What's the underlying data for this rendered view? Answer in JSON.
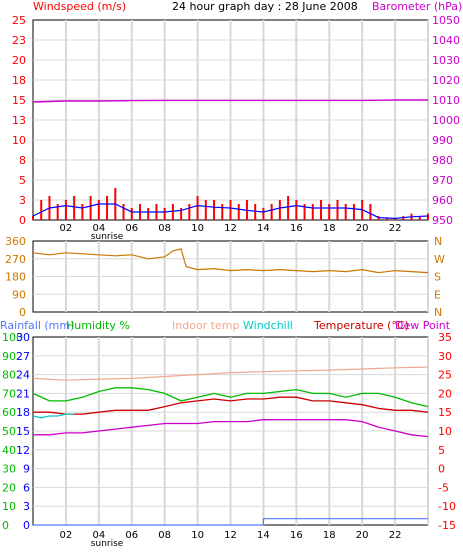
{
  "colors": {
    "wind": "#ff0000",
    "wind_avg": "#0000ff",
    "baro": "#cc00cc",
    "dir": "#cc7700",
    "rain": "#5577ff",
    "humidity": "#00bb00",
    "indoor": "#f0a890",
    "windchill": "#00cccc",
    "temperature": "#cc0000",
    "dewpoint": "#cc00cc",
    "grid": "#d8d8d8",
    "axis_text_left_rain": "#0000ff",
    "axis_text_left_hum": "#00bb00",
    "axis_text_right_temp": "#ff0000"
  },
  "chart_data": [
    {
      "type": "line",
      "title": "24 hour graph day : 28 June 2008",
      "left_label": "Windspeed (m/s)",
      "right_label": "Barometer (hPa)",
      "x_ticks": [
        "02",
        "04",
        "06",
        "08",
        "10",
        "12",
        "14",
        "16",
        "18",
        "20",
        "22",
        ""
      ],
      "sunrise_label": "sunrise",
      "y_left_ticks": [
        "0",
        "3",
        "5",
        "8",
        "10",
        "13",
        "15",
        "18",
        "20",
        "23",
        "25"
      ],
      "y_left_range": [
        0,
        25
      ],
      "y_right_ticks": [
        "950",
        "960",
        "970",
        "980",
        "990",
        "1000",
        "1010",
        "1020",
        "1030",
        "1040",
        "1050"
      ],
      "y_right_range": [
        950,
        1050
      ],
      "series": [
        {
          "key": "wind_gust",
          "x": [
            0,
            0.5,
            1,
            1.5,
            2,
            2.5,
            3,
            3.5,
            4,
            4.5,
            5,
            5.5,
            6,
            6.5,
            7,
            7.5,
            8,
            8.5,
            9,
            9.5,
            10,
            10.5,
            11,
            11.5,
            12,
            12.5,
            13,
            13.5,
            14,
            14.5,
            15,
            15.5,
            16,
            16.5,
            17,
            17.5,
            18,
            18.5,
            19,
            19.5,
            20,
            20.5,
            21,
            21.5,
            22,
            22.5,
            23,
            23.5,
            24
          ],
          "values": [
            0.5,
            2.5,
            3,
            2,
            2.5,
            3,
            2,
            3,
            2.5,
            3,
            4,
            2,
            1.5,
            2,
            1.5,
            2,
            1.5,
            2,
            1.5,
            2,
            3,
            2.5,
            2.5,
            2,
            2.5,
            2,
            2.5,
            2,
            1.5,
            2,
            2.5,
            3,
            2.5,
            2,
            2,
            2.5,
            2,
            2.5,
            2,
            2,
            2.5,
            2,
            0.5,
            0.2,
            0.2,
            0.5,
            0.8,
            0.5,
            0.8
          ]
        },
        {
          "key": "wind_avg",
          "x": [
            0,
            1,
            2,
            3,
            4,
            5,
            6,
            7,
            8,
            9,
            10,
            11,
            12,
            13,
            14,
            15,
            16,
            17,
            18,
            19,
            20,
            21,
            22,
            23,
            24
          ],
          "values": [
            0.5,
            1.5,
            1.8,
            1.5,
            2,
            2,
            1,
            1,
            1,
            1.2,
            1.8,
            1.6,
            1.5,
            1.2,
            1,
            1.5,
            1.8,
            1.5,
            1.5,
            1.5,
            1.3,
            0.3,
            0.2,
            0.4,
            0.5
          ]
        },
        {
          "key": "barometer",
          "x": [
            0,
            2,
            4,
            6,
            8,
            10,
            12,
            14,
            16,
            18,
            20,
            22,
            24
          ],
          "values": [
            1009,
            1009.5,
            1009.5,
            1009.7,
            1009.8,
            1009.8,
            1009.8,
            1009.8,
            1009.8,
            1009.8,
            1009.8,
            1010,
            1010
          ]
        }
      ]
    },
    {
      "type": "line",
      "left_ticks": [
        "360",
        "270",
        "180",
        "90",
        "0"
      ],
      "right_ticks": [
        "N",
        "W",
        "S",
        "E",
        "N"
      ],
      "y_range": [
        0,
        360
      ],
      "series": [
        {
          "key": "wind_direction",
          "x": [
            0,
            1,
            2,
            3,
            4,
            5,
            6,
            7,
            8,
            8.5,
            9,
            9.3,
            10,
            11,
            12,
            13,
            14,
            15,
            16,
            17,
            18,
            19,
            20,
            21,
            22,
            23,
            24
          ],
          "values": [
            300,
            290,
            300,
            295,
            290,
            285,
            290,
            270,
            280,
            310,
            320,
            230,
            215,
            220,
            210,
            215,
            210,
            215,
            210,
            205,
            210,
            205,
            215,
            200,
            210,
            205,
            200
          ]
        }
      ]
    },
    {
      "type": "line",
      "legend": [
        "Rainfall (mm)",
        "Humidity %",
        "Indoor temp",
        "Windchill",
        "Temperature (°C)",
        "Dew Point"
      ],
      "x_ticks": [
        "02",
        "04",
        "06",
        "08",
        "10",
        "12",
        "14",
        "16",
        "18",
        "20",
        "22",
        ""
      ],
      "sunrise_label": "sunrise",
      "y_left_rain_ticks": [
        "0",
        "3",
        "6",
        "9",
        "12",
        "15",
        "18",
        "21",
        "24",
        "27",
        "30"
      ],
      "y_left_rain_range": [
        0,
        30
      ],
      "y_left_hum_ticks": [
        "0",
        "10",
        "20",
        "30",
        "40",
        "50",
        "60",
        "70",
        "80",
        "90",
        "100"
      ],
      "y_left_hum_range": [
        0,
        100
      ],
      "y_right_ticks": [
        "-15",
        "-10",
        "-5",
        "0",
        "5",
        "10",
        "15",
        "20",
        "25",
        "30",
        "35"
      ],
      "y_right_range": [
        -15,
        35
      ],
      "series": [
        {
          "key": "indoor",
          "x": [
            0,
            2,
            4,
            6,
            8,
            10,
            12,
            14,
            16,
            18,
            20,
            22,
            24
          ],
          "values": [
            24,
            23.5,
            23.8,
            24,
            24.5,
            25,
            25.5,
            25.8,
            26,
            26.2,
            26.5,
            26.8,
            27
          ]
        },
        {
          "key": "humidity",
          "x": [
            0,
            1,
            2,
            3,
            4,
            5,
            6,
            7,
            8,
            9,
            10,
            11,
            12,
            13,
            14,
            15,
            16,
            17,
            18,
            19,
            20,
            21,
            22,
            23,
            24
          ],
          "values": [
            70,
            66,
            66,
            68,
            71,
            73,
            73,
            72,
            70,
            66,
            68,
            70,
            68,
            70,
            70,
            71,
            72,
            70,
            70,
            68,
            70,
            70,
            68,
            65,
            63
          ]
        },
        {
          "key": "temperature",
          "x": [
            0,
            1,
            2,
            3,
            4,
            5,
            6,
            7,
            8,
            9,
            10,
            11,
            12,
            13,
            14,
            15,
            16,
            17,
            18,
            19,
            20,
            21,
            22,
            23,
            24
          ],
          "values": [
            15,
            15,
            14.5,
            14.5,
            15,
            15.5,
            15.5,
            15.5,
            16.5,
            17.5,
            18,
            18.5,
            18,
            18.5,
            18.5,
            19,
            19,
            18,
            18,
            17.5,
            17,
            16,
            15.5,
            15.5,
            15
          ]
        },
        {
          "key": "windchill",
          "x": [
            0,
            0.5,
            1,
            1.5,
            2,
            2.5
          ],
          "values": [
            14,
            13.5,
            14,
            14,
            14.5,
            14.5
          ]
        },
        {
          "key": "dewpoint",
          "x": [
            0,
            1,
            2,
            3,
            4,
            5,
            6,
            7,
            8,
            9,
            10,
            11,
            12,
            13,
            14,
            15,
            16,
            17,
            18,
            19,
            20,
            21,
            22,
            23,
            24
          ],
          "values": [
            9,
            9,
            9.5,
            9.5,
            10,
            10.5,
            11,
            11.5,
            12,
            12,
            12,
            12.5,
            12.5,
            12.5,
            13,
            13,
            13,
            13,
            13,
            13,
            12.5,
            11,
            10,
            9,
            8.5
          ]
        },
        {
          "key": "rainfall",
          "x": [
            0,
            14,
            14,
            24
          ],
          "values": [
            0,
            0,
            1,
            1
          ]
        }
      ]
    }
  ]
}
